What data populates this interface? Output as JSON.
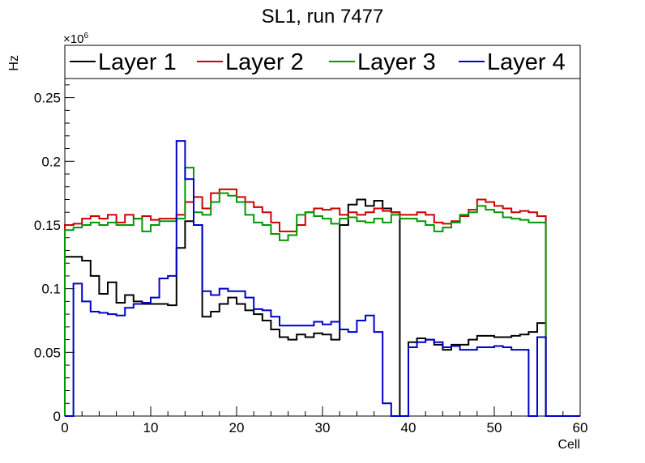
{
  "chart_data": {
    "type": "line",
    "title": "SL1, run 7477",
    "xlabel": "Cell",
    "ylabel": "Hz",
    "y_multiplier": "×10",
    "y_multiplier_exponent": "6",
    "xlim": [
      0,
      60
    ],
    "ylim": [
      0,
      0.265
    ],
    "x_ticks": [
      "0",
      "10",
      "20",
      "30",
      "40",
      "50",
      "60"
    ],
    "y_ticks": [
      "0",
      "0.05",
      "0.1",
      "0.15",
      "0.2",
      "0.25"
    ],
    "legend_position": "top",
    "grid": false,
    "bin_width": 1,
    "series": [
      {
        "name": "Layer 1",
        "color": "#000000",
        "values": [
          0.125,
          0.125,
          0.122,
          0.11,
          0.096,
          0.105,
          0.089,
          0.095,
          0.09,
          0.088,
          0.088,
          0.088,
          0.087,
          0.132,
          0.153,
          0.15,
          0.078,
          0.082,
          0.088,
          0.093,
          0.088,
          0.083,
          0.08,
          0.075,
          0.068,
          0.062,
          0.06,
          0.064,
          0.062,
          0.065,
          0.064,
          0.06,
          0.15,
          0.166,
          0.17,
          0.165,
          0.169,
          0.163,
          0.16,
          0,
          0.058,
          0.061,
          0.06,
          0.056,
          0.052,
          0.056,
          0.056,
          0.06,
          0.063,
          0.063,
          0.062,
          0.062,
          0.063,
          0.064,
          0.066,
          0.073
        ]
      },
      {
        "name": "Layer 2",
        "color": "#cc0000",
        "values": [
          0.15,
          0.151,
          0.155,
          0.157,
          0.155,
          0.158,
          0.152,
          0.158,
          0.155,
          0.157,
          0.154,
          0.155,
          0.155,
          0.158,
          0.168,
          0.172,
          0.163,
          0.175,
          0.178,
          0.178,
          0.172,
          0.168,
          0.164,
          0.16,
          0.152,
          0.145,
          0.145,
          0.15,
          0.16,
          0.163,
          0.162,
          0.163,
          0.158,
          0.16,
          0.158,
          0.16,
          0.163,
          0.161,
          0.16,
          0.158,
          0.158,
          0.16,
          0.158,
          0.152,
          0.151,
          0.153,
          0.157,
          0.162,
          0.17,
          0.168,
          0.165,
          0.163,
          0.16,
          0.161,
          0.16,
          0.157
        ]
      },
      {
        "name": "Layer 3",
        "color": "#009900",
        "values": [
          0.146,
          0.148,
          0.15,
          0.152,
          0.15,
          0.152,
          0.15,
          0.15,
          0.155,
          0.145,
          0.15,
          0.153,
          0.153,
          0.155,
          0.195,
          0.16,
          0.158,
          0.168,
          0.175,
          0.173,
          0.168,
          0.158,
          0.152,
          0.15,
          0.143,
          0.138,
          0.142,
          0.158,
          0.16,
          0.157,
          0.155,
          0.151,
          0.155,
          0.156,
          0.153,
          0.152,
          0.155,
          0.152,
          0.158,
          0.155,
          0.155,
          0.153,
          0.15,
          0.145,
          0.148,
          0.152,
          0.158,
          0.16,
          0.165,
          0.162,
          0.16,
          0.156,
          0.155,
          0.154,
          0.152,
          0.152
        ]
      },
      {
        "name": "Layer 4",
        "color": "#0000cc",
        "values": [
          0,
          0.104,
          0.09,
          0.082,
          0.081,
          0.08,
          0.079,
          0.085,
          0.088,
          0.089,
          0.093,
          0.108,
          0.11,
          0.216,
          0.186,
          0.15,
          0.098,
          0.095,
          0.1,
          0.098,
          0.098,
          0.093,
          0.084,
          0.083,
          0.078,
          0.071,
          0.071,
          0.071,
          0.071,
          0.074,
          0.072,
          0.074,
          0.068,
          0.066,
          0.075,
          0.079,
          0.066,
          0.01,
          0,
          0,
          0.054,
          0.058,
          0.06,
          0.058,
          0.054,
          0.055,
          0.052,
          0.052,
          0.054,
          0.054,
          0.055,
          0.054,
          0.052,
          0.052,
          0,
          0.062
        ]
      }
    ]
  }
}
